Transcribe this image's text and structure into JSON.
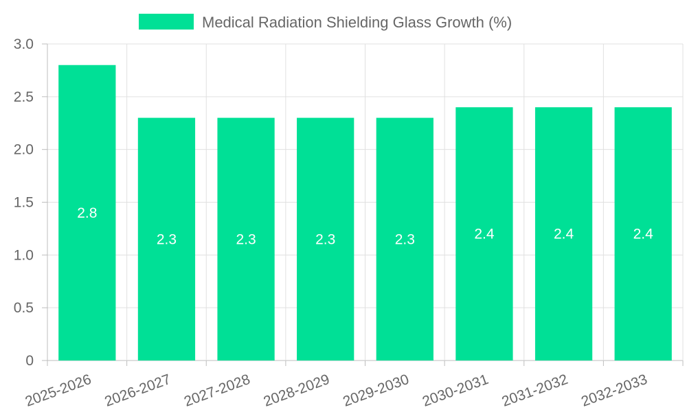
{
  "chart_data": {
    "type": "bar",
    "title": "",
    "xlabel": "",
    "ylabel": "",
    "categories": [
      "2025-2026",
      "2026-2027",
      "2027-2028",
      "2028-2029",
      "2029-2030",
      "2030-2031",
      "2031-2032",
      "2032-2033"
    ],
    "series": [
      {
        "name": "Medical Radiation Shielding Glass Growth (%)",
        "values": [
          2.8,
          2.3,
          2.3,
          2.3,
          2.3,
          2.4,
          2.4,
          2.4
        ],
        "color": "#00e096"
      }
    ],
    "ylim": [
      0,
      3.0
    ],
    "yticks": [
      "0",
      "0.5",
      "1.0",
      "1.5",
      "2.0",
      "2.5",
      "3.0"
    ],
    "grid": true,
    "legend_position": "top-center",
    "data_labels": [
      "2.8",
      "2.3",
      "2.3",
      "2.3",
      "2.3",
      "2.4",
      "2.4",
      "2.4"
    ]
  }
}
